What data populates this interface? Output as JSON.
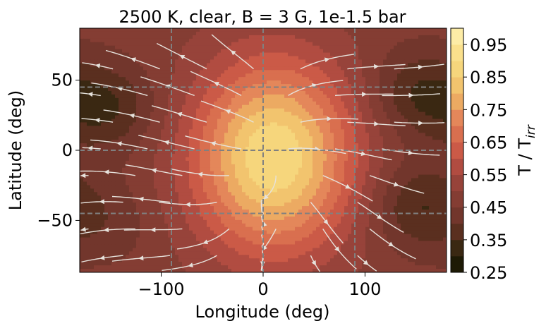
{
  "chart_data": {
    "type": "heatmap",
    "title": "2500 K, clear, B = 3 G, 1e-1.5 bar",
    "xlabel": "Longitude (deg)",
    "ylabel": "Latitude (deg)",
    "xlim": [
      -180,
      180
    ],
    "ylim": [
      -87,
      87
    ],
    "x_ticks": [
      -100,
      0,
      100
    ],
    "y_ticks": [
      50,
      0,
      -50
    ],
    "x_tick_labels": [
      "−100",
      "0",
      "100"
    ],
    "y_tick_labels": [
      "50",
      "0",
      "−50"
    ],
    "grid": "dashed lines at longitude -90, 0, 90 and latitude -45, 0, 45",
    "dashed_lines": {
      "longitudes": [
        -90,
        0,
        90
      ],
      "latitudes": [
        -45,
        0,
        45
      ]
    },
    "colorbar": {
      "label_main": "T / T",
      "label_sub": "irr",
      "range": [
        0.25,
        1.0
      ],
      "levels": [
        0.25,
        0.3,
        0.35,
        0.4,
        0.45,
        0.5,
        0.55,
        0.6,
        0.65,
        0.7,
        0.75,
        0.8,
        0.85,
        0.9,
        0.95,
        1.0
      ],
      "ticks": [
        0.25,
        0.35,
        0.45,
        0.55,
        0.65,
        0.75,
        0.85,
        0.95
      ],
      "tick_labels": [
        "0.25",
        "0.35",
        "0.45",
        "0.55",
        "0.65",
        "0.75",
        "0.85",
        "0.95"
      ],
      "colors": [
        "#1e1a05",
        "#3a2812",
        "#5a2f1f",
        "#72362c",
        "#843d33",
        "#97433a",
        "#b14c41",
        "#cb5a47",
        "#d96f4f",
        "#e4875a",
        "#ecaa62",
        "#f2c46e",
        "#f6d67c",
        "#fae08c",
        "#fdeca6"
      ]
    },
    "temperature_field": {
      "hotspot": {
        "longitude": 10,
        "latitude": -5,
        "value": 0.9
      },
      "cold_regions": [
        {
          "longitude": -150,
          "latitude": 30,
          "value": 0.35
        },
        {
          "longitude": 150,
          "latitude": 40,
          "value": 0.35
        },
        {
          "longitude": 150,
          "latitude": -40,
          "value": 0.35
        },
        {
          "longitude": -150,
          "latitude": -50,
          "value": 0.42
        }
      ]
    },
    "streamlines": "light gray flow arrows diverging from the dayside hotspot toward the nightside"
  }
}
